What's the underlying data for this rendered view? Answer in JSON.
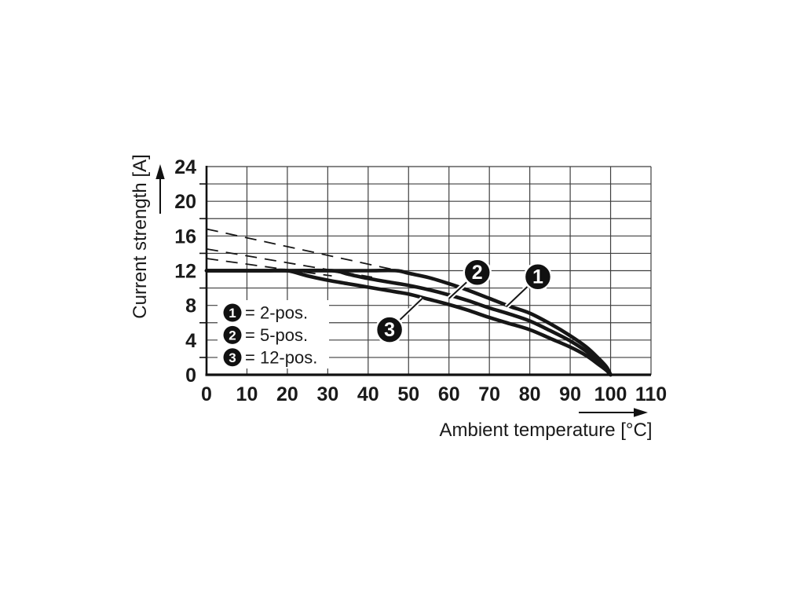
{
  "chart_data": {
    "type": "line",
    "xlabel": "Ambient temperature [°C]",
    "ylabel": "Current strength [A]",
    "xlim": [
      0,
      110
    ],
    "ylim": [
      0,
      24
    ],
    "x_ticks": [
      0,
      10,
      20,
      30,
      40,
      50,
      60,
      70,
      80,
      90,
      100,
      110
    ],
    "y_ticks": [
      0,
      4,
      8,
      12,
      16,
      20,
      24
    ],
    "y_minor_step": 2,
    "grid": true,
    "series": [
      {
        "id": "1",
        "name": "2-pos.",
        "points": [
          [
            0,
            12
          ],
          [
            10,
            12
          ],
          [
            20,
            12
          ],
          [
            30,
            12
          ],
          [
            40,
            12
          ],
          [
            47,
            12
          ],
          [
            50,
            11.7
          ],
          [
            55,
            11.2
          ],
          [
            60,
            10.5
          ],
          [
            65,
            9.7
          ],
          [
            70,
            8.8
          ],
          [
            75,
            7.9
          ],
          [
            80,
            7.1
          ],
          [
            85,
            5.9
          ],
          [
            90,
            4.5
          ],
          [
            94,
            3.2
          ],
          [
            97,
            1.9
          ],
          [
            99,
            0.9
          ],
          [
            100,
            0
          ]
        ]
      },
      {
        "id": "2",
        "name": "5-pos.",
        "points": [
          [
            0,
            12
          ],
          [
            10,
            12
          ],
          [
            20,
            12
          ],
          [
            31,
            12
          ],
          [
            35,
            11.6
          ],
          [
            40,
            11.1
          ],
          [
            45,
            10.7
          ],
          [
            50,
            10.3
          ],
          [
            55,
            9.8
          ],
          [
            60,
            9.2
          ],
          [
            65,
            8.5
          ],
          [
            70,
            7.7
          ],
          [
            75,
            7.0
          ],
          [
            80,
            6.2
          ],
          [
            85,
            5.1
          ],
          [
            90,
            3.9
          ],
          [
            94,
            2.7
          ],
          [
            97,
            1.5
          ],
          [
            99,
            0.7
          ],
          [
            100,
            0
          ]
        ]
      },
      {
        "id": "3",
        "name": "12-pos.",
        "points": [
          [
            0,
            12
          ],
          [
            10,
            12
          ],
          [
            15,
            12
          ],
          [
            20,
            12
          ],
          [
            25,
            11.4
          ],
          [
            30,
            10.9
          ],
          [
            35,
            10.5
          ],
          [
            40,
            10.1
          ],
          [
            45,
            9.7
          ],
          [
            50,
            9.3
          ],
          [
            55,
            8.7
          ],
          [
            60,
            8.1
          ],
          [
            65,
            7.4
          ],
          [
            70,
            6.6
          ],
          [
            75,
            5.9
          ],
          [
            80,
            5.2
          ],
          [
            85,
            4.2
          ],
          [
            90,
            3.2
          ],
          [
            94,
            2.2
          ],
          [
            97,
            1.2
          ],
          [
            99,
            0.5
          ],
          [
            100,
            0
          ]
        ]
      }
    ],
    "dashed_extrapolations": [
      {
        "for": "2-pos.",
        "points": [
          [
            0,
            16.8
          ],
          [
            46,
            12.15
          ]
        ]
      },
      {
        "for": "5-pos.",
        "points": [
          [
            0,
            14.5
          ],
          [
            41,
            11.25
          ]
        ]
      },
      {
        "for": "12-pos.",
        "points": [
          [
            0,
            13.4
          ],
          [
            31,
            11.4
          ]
        ]
      }
    ],
    "callouts": [
      {
        "label": "1",
        "at": [
          82.0,
          11.3
        ],
        "target": [
          74.2,
          7.85
        ]
      },
      {
        "label": "2",
        "at": [
          67.0,
          11.8
        ],
        "target": [
          60.0,
          8.8
        ]
      },
      {
        "label": "3",
        "at": [
          45.3,
          5.2
        ],
        "target": [
          53.4,
          8.8
        ]
      }
    ],
    "legend": [
      {
        "marker": "1",
        "label": "= 2-pos."
      },
      {
        "marker": "2",
        "label": "= 5-pos."
      },
      {
        "marker": "3",
        "label": "= 12-pos."
      }
    ],
    "colors": {
      "curve": "#161616",
      "grid": "#3f3f3f",
      "axis": "#111111",
      "text": "#1a1a1a",
      "background": "#ffffff",
      "badge_fill": "#111111",
      "badge_text": "#ffffff"
    }
  }
}
